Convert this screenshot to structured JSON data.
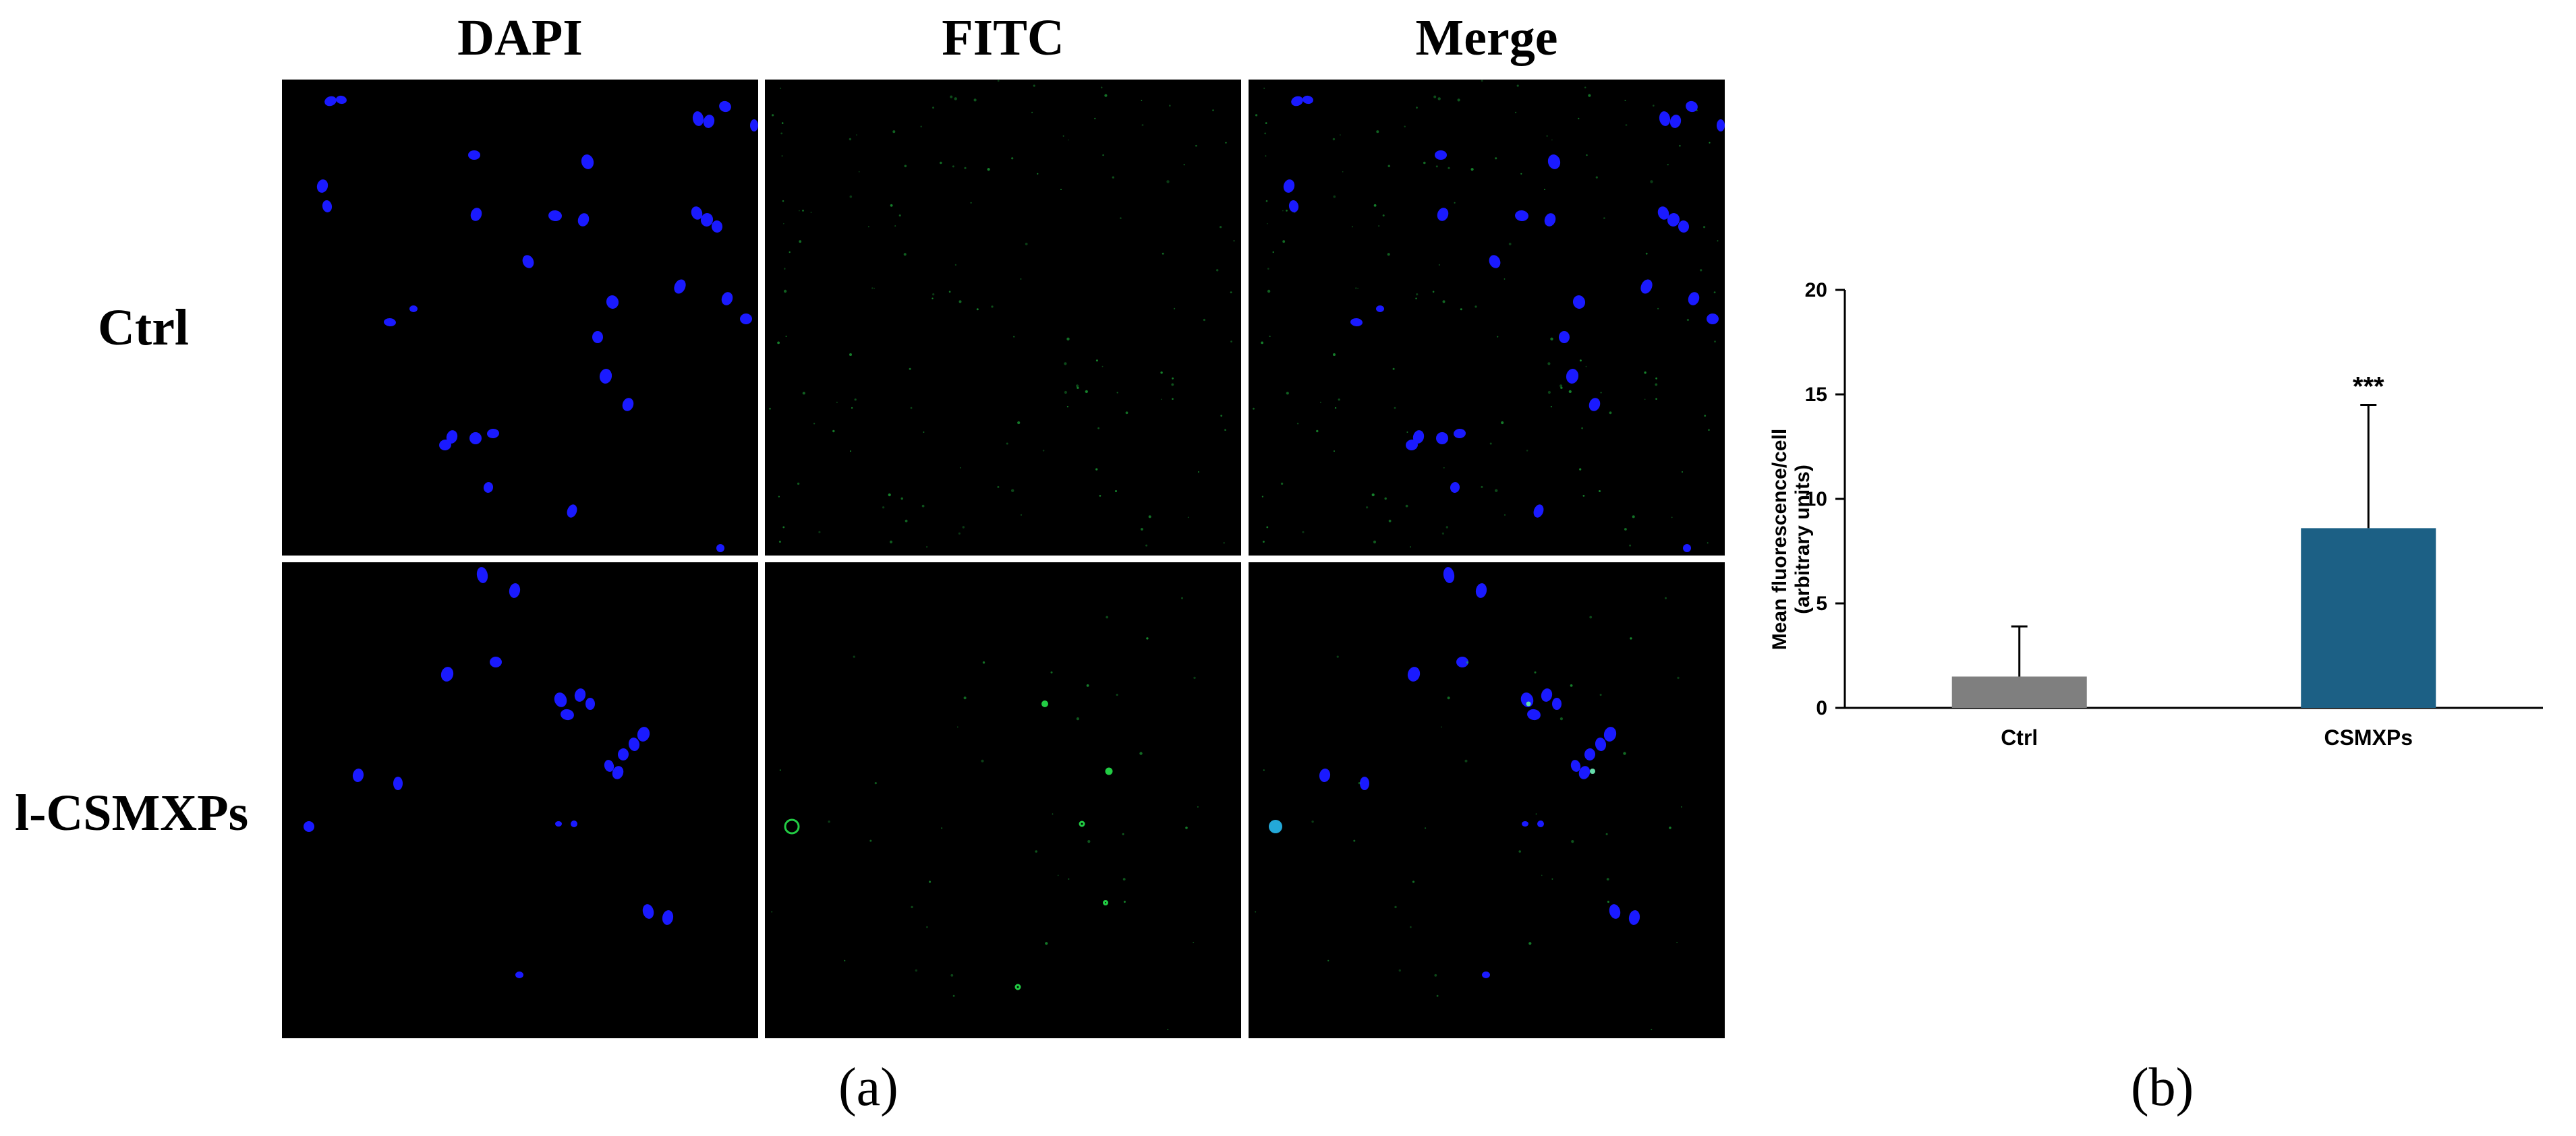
{
  "figure": {
    "columns": [
      "DAPI",
      "FITC",
      "Merge"
    ],
    "rows": [
      "Ctrl",
      "l-CSMXPs"
    ],
    "panel_a_label": "(a)",
    "panel_b_label": "(b)"
  },
  "colors": {
    "nucleus": "#1a1aff",
    "fitc": "#22cc44",
    "ctrl_bar": "#7f7f7f",
    "csmxps_bar": "#1c6085"
  },
  "chart_data": {
    "type": "bar",
    "categories": [
      "Ctrl",
      "CSMXPs"
    ],
    "values": [
      1.5,
      8.6
    ],
    "error": [
      2.4,
      5.9
    ],
    "annotations": [
      "",
      "***"
    ],
    "ylabel_line1": "Mean fluorescence/cell",
    "ylabel_line2": "(arbitrary units)",
    "ylim": [
      0,
      20
    ],
    "yticks": [
      0,
      5,
      10,
      15,
      20
    ],
    "grid": false,
    "colors": [
      "#7f7f7f",
      "#1c6085"
    ]
  }
}
